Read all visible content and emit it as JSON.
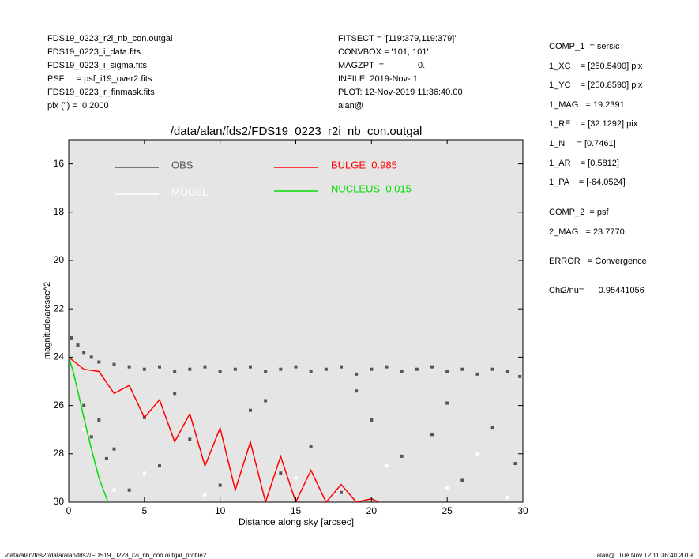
{
  "chart_data": {
    "type": "scatter",
    "title": "/data/alan/fds2/FDS19_0223_r2i_nb_con.outgal",
    "x_label": "Distance along sky [arcsec]",
    "y_label": "magnitude/arcsec^2",
    "header_left": [
      "FDS19_0223_r2i_nb_con.outgal",
      "FDS19_0223_i_data.fits",
      "FDS19_0223_i_sigma.fits",
      "PSF     = psf_i19_over2.fits",
      "FDS19_0223_r_finmask.fits",
      "pix (\") =  0.2000"
    ],
    "header_middle": [
      "FITSECT = '[119:379,119:379]'",
      "CONVBOX = '101, 101'",
      "MAGZPT  =              0.",
      "INFILE: 2019-Nov- 1",
      "PLOT: 12-Nov-2019 11:36:40.00",
      "alan@"
    ],
    "header_right": [
      "COMP_1  = sersic",
      "1_XC    = [250.5490] pix",
      "1_YC    = [250.8590] pix",
      "1_MAG   = 19.2391",
      "1_RE    = [32.1292] pix",
      "1_N     = [0.7461]",
      "1_AR    = [0.5812]",
      "1_PA    = [-64.0524]",
      "COMP_2  = psf",
      "2_MAG   = 23.7770",
      "ERROR   = Convergence",
      "Chi2/nu=      0.95441056"
    ],
    "footer_left": "/data/alan/fds2//data/alan/fds2/FDS19_0223_r2i_nb_con.outgal_profile2",
    "footer_right": "alan@  Tue Nov 12 11:36:40 2019",
    "xlim": [
      0,
      30
    ],
    "ylim": [
      30,
      15
    ],
    "xticks": [
      0,
      5,
      10,
      15,
      20,
      25,
      30
    ],
    "yticks": [
      16,
      18,
      20,
      22,
      24,
      26,
      28,
      30
    ],
    "background": "#e5e5e5",
    "series": [
      {
        "name": "OBS",
        "color": "#555555",
        "style": "points",
        "x": [
          0.2,
          0.6,
          1.0,
          1.5,
          2,
          3,
          4,
          5,
          6,
          7,
          8,
          9,
          10,
          11,
          12,
          13,
          14,
          15,
          16,
          17,
          18,
          19,
          20,
          21,
          22,
          23,
          24,
          25,
          26,
          27,
          28,
          29,
          29.8,
          1,
          1.5,
          2,
          2.5,
          3,
          4,
          5,
          6,
          8,
          10,
          12,
          14,
          16,
          18,
          20,
          22,
          24,
          26,
          28,
          29.5,
          7,
          13,
          19,
          25
        ],
        "values": [
          23.2,
          23.5,
          23.8,
          24.0,
          24.2,
          24.3,
          24.4,
          24.5,
          24.4,
          24.6,
          24.5,
          24.4,
          24.6,
          24.5,
          24.4,
          24.6,
          24.5,
          24.4,
          24.6,
          24.5,
          24.4,
          24.7,
          24.5,
          24.4,
          24.6,
          24.5,
          24.4,
          24.6,
          24.5,
          24.7,
          24.5,
          24.6,
          24.8,
          26.0,
          27.3,
          26.6,
          28.2,
          27.8,
          29.5,
          26.5,
          28.5,
          27.4,
          29.3,
          26.2,
          28.8,
          27.7,
          29.6,
          26.6,
          28.1,
          27.2,
          29.1,
          26.9,
          28.4,
          25.5,
          25.8,
          25.4,
          25.9
        ]
      },
      {
        "name": "MODEL",
        "color": "#ffffff",
        "style": "points",
        "x": [
          0.5,
          1,
          3,
          5,
          9,
          15,
          21,
          25,
          29,
          27
        ],
        "values": [
          25.0,
          27.0,
          29.5,
          28.8,
          29.7,
          29.0,
          28.5,
          29.4,
          29.8,
          28.0
        ]
      },
      {
        "name": "BULGE  0.985",
        "color": "#ff0000",
        "style": "line",
        "x": [
          0,
          1,
          2,
          3,
          4,
          5,
          6,
          7,
          8,
          9,
          10,
          11,
          12,
          13,
          14,
          15,
          16,
          17,
          18,
          19,
          20,
          20.5
        ],
        "values": [
          24.0,
          24.5,
          24.59,
          25.5,
          25.17,
          26.5,
          25.76,
          27.5,
          26.34,
          28.5,
          26.93,
          29.5,
          27.51,
          30.0,
          28.1,
          30.0,
          28.68,
          30.0,
          29.27,
          30.0,
          29.86,
          30.0
        ]
      },
      {
        "name": "NUCLEUS  0.015",
        "color": "#00dd00",
        "style": "line",
        "x": [
          0,
          0.3,
          0.6,
          1,
          1.5,
          2,
          2.6
        ],
        "values": [
          24.0,
          24.6,
          25.4,
          26.5,
          27.8,
          29.0,
          30.0
        ]
      }
    ]
  }
}
